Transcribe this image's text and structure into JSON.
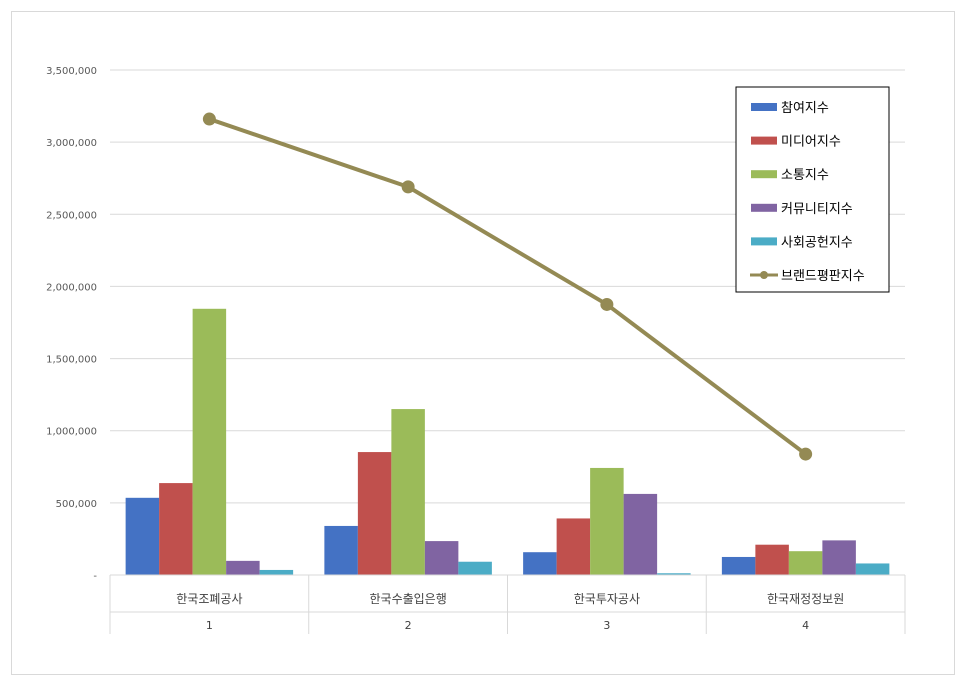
{
  "chart_data": {
    "type": "bar",
    "categories": [
      "한국조폐공사",
      "한국수출입은행",
      "한국투자공사",
      "한국재정정보원"
    ],
    "category_numbers": [
      "1",
      "2",
      "3",
      "4"
    ],
    "series": [
      {
        "name": "참여지수",
        "color": "#4472c4",
        "values": [
          535000,
          340000,
          158000,
          125000
        ]
      },
      {
        "name": "미디어지수",
        "color": "#c0504d",
        "values": [
          637000,
          852000,
          392000,
          210000
        ]
      },
      {
        "name": "소통지수",
        "color": "#9bbb59",
        "values": [
          1845000,
          1150000,
          742000,
          165000
        ]
      },
      {
        "name": "커뮤니티지수",
        "color": "#8064a2",
        "values": [
          98000,
          235000,
          562000,
          240000
        ]
      },
      {
        "name": "사회공헌지수",
        "color": "#4bacc6",
        "values": [
          35000,
          92000,
          12000,
          80000
        ]
      }
    ],
    "line_series": {
      "name": "브랜드평판지수",
      "color": "#948a54",
      "values": [
        3160000,
        2690000,
        1875000,
        838000
      ]
    },
    "y_ticks": [
      "-",
      "500,000",
      "1,000,000",
      "1,500,000",
      "2,000,000",
      "2,500,000",
      "3,000,000",
      "3,500,000"
    ],
    "ylim": [
      0,
      3500000
    ],
    "grid": true,
    "legend_position": "top-right"
  }
}
